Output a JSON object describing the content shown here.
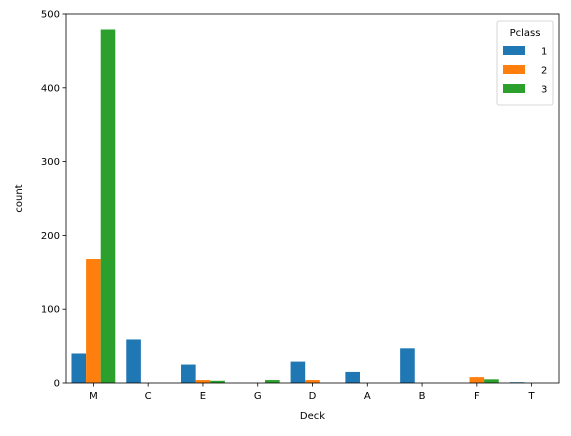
{
  "chart_data": {
    "type": "bar",
    "xlabel": "Deck",
    "ylabel": "count",
    "categories": [
      "M",
      "C",
      "E",
      "G",
      "D",
      "A",
      "B",
      "F",
      "T"
    ],
    "ylim": [
      0,
      500
    ],
    "yticks": [
      0,
      100,
      200,
      300,
      400,
      500
    ],
    "legend": {
      "title": "Pclass",
      "placement": "top-right"
    },
    "series": [
      {
        "name": "1",
        "color": "#1f77b4",
        "values": [
          40,
          59,
          25,
          0,
          29,
          15,
          47,
          0,
          1
        ]
      },
      {
        "name": "2",
        "color": "#ff7f0e",
        "values": [
          168,
          0,
          4,
          0,
          4,
          0,
          0,
          8,
          0
        ]
      },
      {
        "name": "3",
        "color": "#2ca02c",
        "values": [
          479,
          0,
          3,
          4,
          0,
          0,
          0,
          5,
          0
        ]
      }
    ],
    "grid": false
  }
}
